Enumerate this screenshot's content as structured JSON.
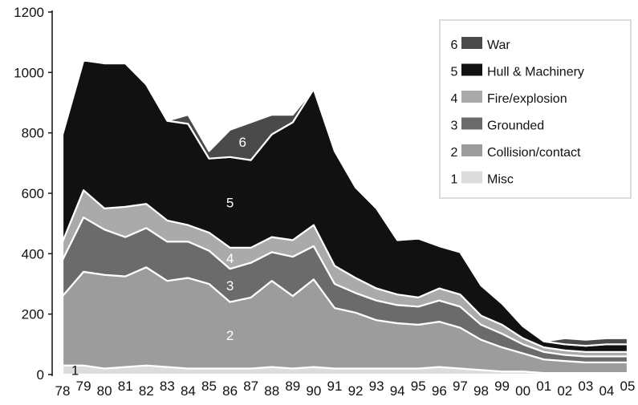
{
  "chart_data": {
    "type": "area",
    "stacked": true,
    "title": "",
    "xlabel": "",
    "ylabel": "",
    "ylim": [
      0,
      1200
    ],
    "yticks": [
      0,
      200,
      400,
      600,
      800,
      1000,
      1200
    ],
    "grid": false,
    "legend_position": "top-right",
    "categories": [
      "78",
      "79",
      "80",
      "81",
      "82",
      "83",
      "84",
      "85",
      "86",
      "87",
      "88",
      "89",
      "90",
      "91",
      "92",
      "93",
      "94",
      "95",
      "96",
      "97",
      "98",
      "99",
      "00",
      "01",
      "02",
      "03",
      "04",
      "05"
    ],
    "series": [
      {
        "id": "1",
        "name": "Misc",
        "color": "#dcdcdc",
        "values": [
          30,
          30,
          20,
          25,
          30,
          25,
          20,
          20,
          20,
          20,
          25,
          20,
          25,
          20,
          20,
          20,
          20,
          20,
          25,
          20,
          15,
          10,
          10,
          5,
          5,
          5,
          5,
          5
        ]
      },
      {
        "id": "2",
        "name": "Collision/contact",
        "color": "#9c9c9c",
        "values": [
          230,
          310,
          310,
          300,
          325,
          285,
          300,
          280,
          220,
          235,
          285,
          240,
          290,
          200,
          185,
          160,
          150,
          145,
          150,
          135,
          100,
          80,
          60,
          45,
          40,
          35,
          35,
          35
        ]
      },
      {
        "id": "3",
        "name": "Grounded",
        "color": "#6b6b6b",
        "values": [
          120,
          180,
          150,
          130,
          130,
          130,
          120,
          110,
          110,
          115,
          95,
          130,
          110,
          80,
          65,
          65,
          60,
          60,
          70,
          70,
          50,
          45,
          30,
          25,
          20,
          20,
          20,
          20
        ]
      },
      {
        "id": "4",
        "name": "Fire/explosion",
        "color": "#aaaaaa",
        "values": [
          60,
          90,
          70,
          100,
          80,
          70,
          55,
          60,
          70,
          50,
          50,
          55,
          70,
          60,
          50,
          40,
          35,
          30,
          40,
          40,
          30,
          30,
          20,
          15,
          15,
          15,
          15,
          15
        ]
      },
      {
        "id": "5",
        "name": "Hull & Machinery",
        "color": "#111111",
        "values": [
          355,
          430,
          480,
          475,
          395,
          330,
          335,
          245,
          300,
          290,
          340,
          390,
          450,
          380,
          300,
          265,
          180,
          195,
          140,
          140,
          100,
          70,
          40,
          20,
          20,
          20,
          25,
          25
        ]
      },
      {
        "id": "6",
        "name": "War",
        "color": "#4a4a4a",
        "values": [
          0,
          0,
          0,
          0,
          0,
          0,
          30,
          25,
          90,
          125,
          65,
          25,
          0,
          0,
          0,
          0,
          0,
          0,
          0,
          0,
          0,
          0,
          0,
          0,
          20,
          20,
          20,
          20
        ]
      }
    ],
    "inline_labels": [
      "1",
      "2",
      "3",
      "4",
      "5",
      "6"
    ]
  }
}
